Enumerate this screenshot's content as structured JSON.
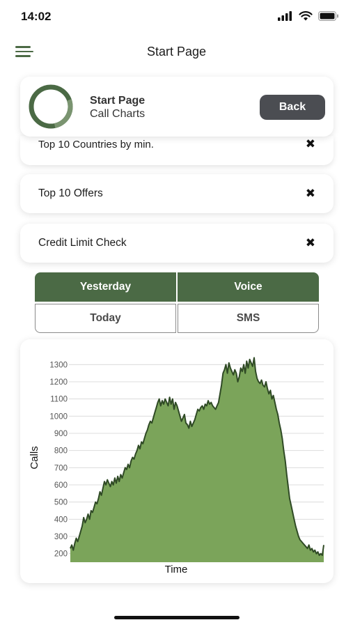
{
  "status_bar": {
    "time": "14:02"
  },
  "nav": {
    "title": "Start Page"
  },
  "header": {
    "title": "Start Page",
    "subtitle": "Call Charts",
    "back_label": "Back"
  },
  "rows": [
    {
      "label": "Top 10 Countries by min."
    },
    {
      "label": "Top 10 Offers"
    },
    {
      "label": "Credit Limit Check"
    }
  ],
  "close_glyph": "✖",
  "segments": {
    "yesterday": "Yesterday",
    "voice": "Voice",
    "today": "Today",
    "sms": "SMS"
  },
  "colors": {
    "accent": "#4b6a45",
    "fill": "#7ba45a",
    "line": "#2f4a25",
    "back_btn": "#4b4d52"
  },
  "chart_data": {
    "type": "area",
    "xlabel": "Time",
    "ylabel": "Calls",
    "ylim": [
      150,
      1350
    ],
    "yticks": [
      200,
      300,
      400,
      500,
      600,
      700,
      800,
      900,
      1000,
      1100,
      1200,
      1300
    ],
    "grid": true,
    "values": [
      230,
      250,
      220,
      260,
      290,
      270,
      300,
      330,
      360,
      410,
      380,
      400,
      430,
      400,
      450,
      440,
      470,
      500,
      490,
      520,
      560,
      540,
      580,
      620,
      600,
      630,
      610,
      590,
      620,
      600,
      640,
      610,
      650,
      620,
      660,
      640,
      670,
      700,
      690,
      720,
      700,
      740,
      760,
      750,
      780,
      800,
      830,
      810,
      850,
      840,
      870,
      900,
      920,
      950,
      970,
      960,
      990,
      1020,
      1050,
      1080,
      1100,
      1060,
      1090,
      1070,
      1100,
      1080,
      1060,
      1110,
      1070,
      1100,
      1040,
      1080,
      1060,
      1030,
      1000,
      970,
      990,
      1010,
      960,
      950,
      930,
      970,
      940,
      960,
      980,
      1010,
      1040,
      1030,
      1050,
      1060,
      1040,
      1070,
      1060,
      1090,
      1070,
      1080,
      1060,
      1050,
      1040,
      1060,
      1080,
      1130,
      1180,
      1250,
      1270,
      1300,
      1250,
      1310,
      1280,
      1260,
      1240,
      1270,
      1250,
      1200,
      1230,
      1280,
      1260,
      1300,
      1250,
      1320,
      1280,
      1330,
      1310,
      1290,
      1340,
      1260,
      1220,
      1200,
      1190,
      1210,
      1180,
      1170,
      1200,
      1160,
      1130,
      1150,
      1100,
      1120,
      1080,
      1040,
      1010,
      960,
      920,
      870,
      800,
      740,
      660,
      590,
      520,
      480,
      440,
      400,
      360,
      330,
      300,
      280,
      270,
      260,
      250,
      240,
      230,
      250,
      220,
      230,
      210,
      220,
      200,
      210,
      190,
      200,
      190,
      250
    ]
  }
}
